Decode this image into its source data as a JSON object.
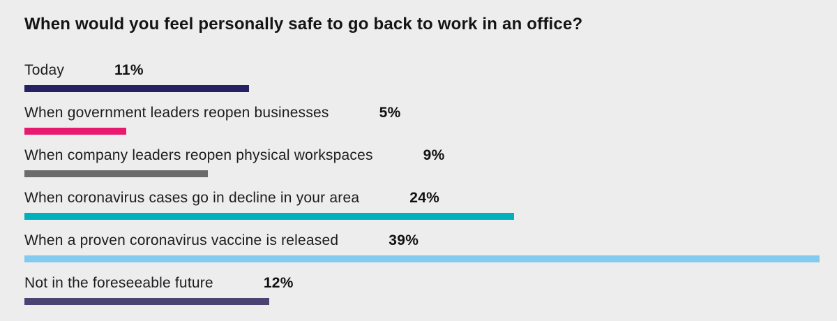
{
  "chart_data": {
    "type": "bar",
    "orientation": "horizontal",
    "title": "When would you feel personally safe to go back to work in an office?",
    "unit": "%",
    "xlim": [
      0,
      39
    ],
    "grid": false,
    "legend": "none",
    "value_labels_shown": true,
    "categories": [
      "Today",
      "When government leaders reopen businesses",
      "When company leaders reopen physical workspaces",
      "When coronavirus cases go in decline in your area",
      "When a proven coronavirus vaccine is released",
      "Not in the foreseeable future"
    ],
    "values": [
      11,
      5,
      9,
      24,
      39,
      12
    ],
    "rows": [
      {
        "label": "Today",
        "value": 11,
        "value_label": "11%",
        "color": "#262163"
      },
      {
        "label": "When government leaders reopen businesses",
        "value": 5,
        "value_label": "5%",
        "color": "#e81a70"
      },
      {
        "label": "When company leaders reopen physical workspaces",
        "value": 9,
        "value_label": "9%",
        "color": "#6b6b6b"
      },
      {
        "label": "When coronavirus cases go in decline in your area",
        "value": 24,
        "value_label": "24%",
        "color": "#00b1bd"
      },
      {
        "label": "When a proven coronavirus vaccine is released",
        "value": 39,
        "value_label": "39%",
        "color": "#82cbee"
      },
      {
        "label": "Not in the foreseeable future",
        "value": 12,
        "value_label": "12%",
        "color": "#4b4372"
      }
    ]
  },
  "colors": {
    "background": "#ededee",
    "title_text": "#141414",
    "label_text": "#1c1c1e"
  }
}
